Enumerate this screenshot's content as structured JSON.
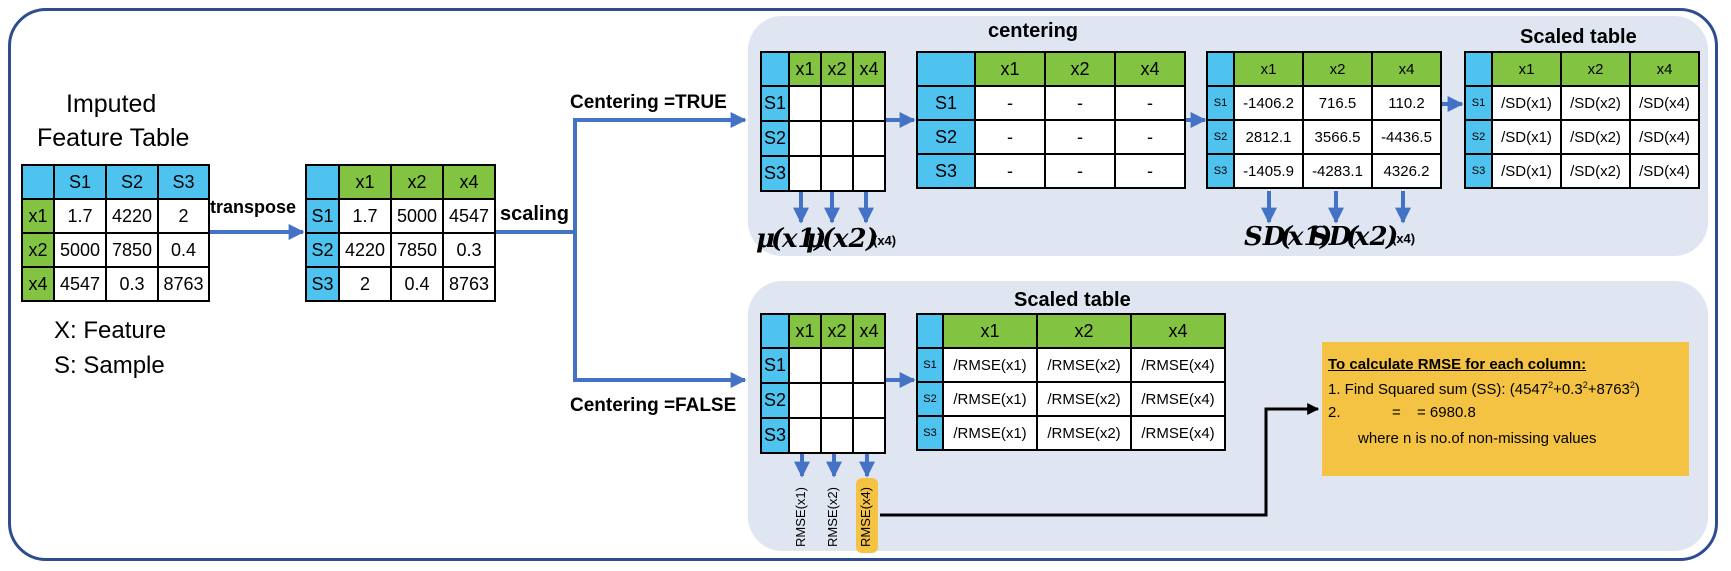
{
  "left": {
    "title_line1": "Imputed",
    "title_line2": "Feature Table",
    "table": {
      "header": [
        "",
        "S1",
        "S2",
        "S3"
      ],
      "rows": [
        [
          "x1",
          "1.7",
          "4220",
          "2"
        ],
        [
          "x2",
          "5000",
          "7850",
          "0.4"
        ],
        [
          "x4",
          "4547",
          "0.3",
          "8763"
        ]
      ]
    },
    "legend_x": "X: Feature",
    "legend_s": "S: Sample"
  },
  "steps": {
    "transpose": "transpose",
    "scaling": "scaling",
    "centering_true": "Centering =TRUE",
    "centering_false": "Centering =FALSE"
  },
  "transposed": {
    "header": [
      "",
      "x1",
      "x2",
      "x4"
    ],
    "rows": [
      [
        "S1",
        "1.7",
        "5000",
        "4547"
      ],
      [
        "S2",
        "4220",
        "7850",
        "0.3"
      ],
      [
        "S3",
        "2",
        "0.4",
        "8763"
      ]
    ]
  },
  "top_panel": {
    "blank_table": {
      "header": [
        "",
        "x1",
        "x2",
        "x4"
      ],
      "rows": [
        "S1",
        "S2",
        "S3"
      ]
    },
    "means": {
      "mu": "μ",
      "x1": "x1",
      "x2": "x2",
      "x4": "(x4)"
    },
    "centering_title": "centering",
    "centering_table": {
      "header": [
        "",
        "x1",
        "x2",
        "x4"
      ],
      "rows": [
        [
          "S1",
          "-",
          "-",
          "-"
        ],
        [
          "S2",
          "-",
          "-",
          "-"
        ],
        [
          "S3",
          "-",
          "-",
          "-"
        ]
      ]
    },
    "centered_table": {
      "header": [
        "",
        "x1",
        "x2",
        "x4"
      ],
      "rows": [
        [
          "S1",
          "-1406.2",
          "716.5",
          "110.2"
        ],
        [
          "S2",
          "2812.1",
          "3566.5",
          "-4436.5"
        ],
        [
          "S3",
          "-1405.9",
          "-4283.1",
          "4326.2"
        ]
      ]
    },
    "sd": {
      "sd": "SD",
      "x1": "x1",
      "x2": "x2",
      "x4": "(x4)"
    },
    "scaled_title": "Scaled table",
    "scaled_table": {
      "header": [
        "",
        "x1",
        "x2",
        "x4"
      ],
      "rows": [
        [
          "S1",
          "/SD(x1)",
          "/SD(x2)",
          "/SD(x4)"
        ],
        [
          "S2",
          "/SD(x1)",
          "/SD(x2)",
          "/SD(x4)"
        ],
        [
          "S3",
          "/SD(x1)",
          "/SD(x2)",
          "/SD(x4)"
        ]
      ]
    }
  },
  "bottom_panel": {
    "blank_table": {
      "header": [
        "",
        "x1",
        "x2",
        "x4"
      ],
      "rows": [
        "S1",
        "S2",
        "S3"
      ]
    },
    "scaled_title": "Scaled table",
    "scaled_table": {
      "header": [
        "",
        "x1",
        "x2",
        "x4"
      ],
      "rows": [
        [
          "S1",
          "/RMSE(x1)",
          "/RMSE(x2)",
          "/RMSE(x4)"
        ],
        [
          "S2",
          "/RMSE(x1)",
          "/RMSE(x2)",
          "/RMSE(x4)"
        ],
        [
          "S3",
          "/RMSE(x1)",
          "/RMSE(x2)",
          "/RMSE(x4)"
        ]
      ]
    },
    "rmse_labels": [
      "RMSE(x1)",
      "RMSE(x2)",
      "RMSE(x4)"
    ],
    "rmse_box": {
      "title": "To calculate RMSE for each column:",
      "line1_prefix": "1. Find Squared sum (SS): (4547",
      "line1_sup1": "2",
      "line1_mid1": "+0.3",
      "line1_sup2": "2",
      "line1_mid2": "+8763",
      "line1_sup3": "2",
      "line1_suffix": ")",
      "line2_num": "2.",
      "line2_eq1": "=",
      "line2_eq2": "= 6980.8",
      "line3": "where n is no.of non-missing values"
    }
  },
  "colors": {
    "frame": "#2e4d8f",
    "panel": "#dfe6f2",
    "blue_cell": "#4fc3ef",
    "green_cell": "#82c341",
    "arrow": "#4472c4",
    "highlight": "#f5c343",
    "rmse_box": "#f5c343"
  }
}
